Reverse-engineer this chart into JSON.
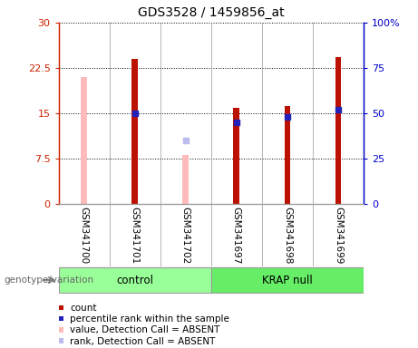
{
  "title": "GDS3528 / 1459856_at",
  "samples": [
    "GSM341700",
    "GSM341701",
    "GSM341702",
    "GSM341697",
    "GSM341698",
    "GSM341699"
  ],
  "count_values": [
    null,
    24.0,
    null,
    15.8,
    16.2,
    24.3
  ],
  "percentile_values_pct": [
    null,
    50.0,
    null,
    45.0,
    48.0,
    52.0
  ],
  "absent_value_values": [
    21.0,
    null,
    8.0,
    null,
    null,
    null
  ],
  "absent_rank_pct": [
    null,
    null,
    35.0,
    null,
    null,
    null
  ],
  "ylim_left": [
    0,
    30
  ],
  "ylim_right": [
    0,
    100
  ],
  "yticks_left": [
    0,
    7.5,
    15,
    22.5,
    30
  ],
  "ytick_labels_left": [
    "0",
    "7.5",
    "15",
    "22.5",
    "30"
  ],
  "yticks_right": [
    0,
    25,
    50,
    75,
    100
  ],
  "ytick_labels_right": [
    "0",
    "25",
    "50",
    "75",
    "100%"
  ],
  "left_axis_color": "#cc2200",
  "right_axis_color": "#0000cc",
  "bar_color_count": "#bb1100",
  "bar_color_percentile": "#2222bb",
  "bar_color_absent_value": "#ffbbbb",
  "bar_color_absent_rank": "#bbbbee",
  "group_color_control": "#99ff99",
  "group_color_krap": "#66ee66",
  "bar_width": 0.12,
  "marker_size": 4,
  "legend_items": [
    {
      "label": "count",
      "color": "#bb1100"
    },
    {
      "label": "percentile rank within the sample",
      "color": "#2222bb"
    },
    {
      "label": "value, Detection Call = ABSENT",
      "color": "#ffbbbb"
    },
    {
      "label": "rank, Detection Call = ABSENT",
      "color": "#bbbbee"
    }
  ],
  "fig_bg": "#f0f0f0"
}
